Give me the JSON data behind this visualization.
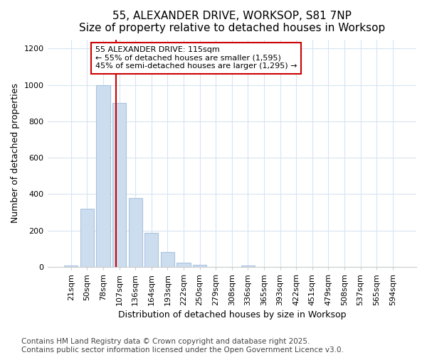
{
  "title1": "55, ALEXANDER DRIVE, WORKSOP, S81 7NP",
  "title2": "Size of property relative to detached houses in Worksop",
  "xlabel": "Distribution of detached houses by size in Worksop",
  "ylabel": "Number of detached properties",
  "categories": [
    "21sqm",
    "50sqm",
    "78sqm",
    "107sqm",
    "136sqm",
    "164sqm",
    "193sqm",
    "222sqm",
    "250sqm",
    "279sqm",
    "308sqm",
    "336sqm",
    "365sqm",
    "393sqm",
    "422sqm",
    "451sqm",
    "479sqm",
    "508sqm",
    "537sqm",
    "565sqm",
    "594sqm"
  ],
  "values": [
    8,
    320,
    1000,
    900,
    380,
    185,
    80,
    22,
    10,
    0,
    0,
    6,
    0,
    0,
    0,
    0,
    0,
    0,
    0,
    0,
    0
  ],
  "bar_color": "#ccddef",
  "bar_edge_color": "#aac4de",
  "red_line_color": "#cc0000",
  "annotation_text": "55 ALEXANDER DRIVE: 115sqm\n← 55% of detached houses are smaller (1,595)\n45% of semi-detached houses are larger (1,295) →",
  "annotation_box_color": "#ffffff",
  "annotation_box_edge": "#cc0000",
  "ylim": [
    0,
    1250
  ],
  "yticks": [
    0,
    200,
    400,
    600,
    800,
    1000,
    1200
  ],
  "footnote1": "Contains HM Land Registry data © Crown copyright and database right 2025.",
  "footnote2": "Contains public sector information licensed under the Open Government Licence v3.0.",
  "background_color": "#ffffff",
  "plot_bg_color": "#ffffff",
  "grid_color": "#d8e4f0",
  "title_fontsize": 11,
  "axis_label_fontsize": 9,
  "tick_fontsize": 8,
  "footnote_fontsize": 7.5
}
